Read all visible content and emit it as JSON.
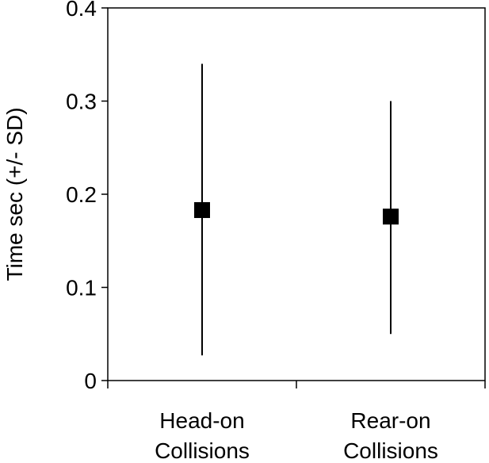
{
  "chart_data": {
    "type": "scatter",
    "title": "",
    "xlabel": "",
    "ylabel": "Time sec (+/- SD)",
    "ylim": [
      0,
      0.4
    ],
    "yticks": [
      0,
      0.1,
      0.2,
      0.3,
      0.4
    ],
    "ytick_labels": [
      "0",
      "0.1",
      "0.2",
      "0.3",
      "0.4"
    ],
    "categories": [
      [
        "Head-on",
        "Collisions"
      ],
      [
        "Rear-on",
        "Collisions"
      ]
    ],
    "series": [
      {
        "values": [
          0.183,
          0.176
        ],
        "error_low": [
          0.027,
          0.05
        ],
        "error_high": [
          0.34,
          0.3
        ]
      }
    ],
    "grid": false,
    "legend": "none",
    "marker": "square",
    "color": "#000000"
  }
}
